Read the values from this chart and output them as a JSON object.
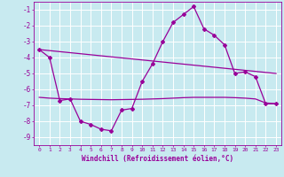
{
  "xlabel": "Windchill (Refroidissement éolien,°C)",
  "background_color": "#c8eaf0",
  "grid_color": "#ffffff",
  "line_color": "#990099",
  "xlim": [
    -0.5,
    23.5
  ],
  "ylim": [
    -9.5,
    -0.5
  ],
  "yticks": [
    -9,
    -8,
    -7,
    -6,
    -5,
    -4,
    -3,
    -2,
    -1
  ],
  "xticks": [
    0,
    1,
    2,
    3,
    4,
    5,
    6,
    7,
    8,
    9,
    10,
    11,
    12,
    13,
    14,
    15,
    16,
    17,
    18,
    19,
    20,
    21,
    22,
    23
  ],
  "series1_x": [
    0,
    1,
    2,
    3,
    4,
    5,
    6,
    7,
    8,
    9,
    10,
    11,
    12,
    13,
    14,
    15,
    16,
    17,
    18,
    19,
    20,
    21,
    22,
    23
  ],
  "series1_y": [
    -3.5,
    -4.0,
    -6.7,
    -6.6,
    -8.0,
    -8.2,
    -8.5,
    -8.6,
    -7.3,
    -7.2,
    -5.5,
    -4.4,
    -3.0,
    -1.8,
    -1.3,
    -0.8,
    -2.2,
    -2.6,
    -3.2,
    -5.0,
    -4.9,
    -5.2,
    -6.9,
    -6.9
  ],
  "series_trend_x": [
    0,
    23
  ],
  "series_trend_y": [
    -3.5,
    -5.0
  ],
  "series_flat_x": [
    0,
    1,
    2,
    3,
    4,
    5,
    6,
    7,
    8,
    9,
    10,
    11,
    12,
    13,
    14,
    15,
    16,
    17,
    18,
    19,
    20,
    21,
    22,
    23
  ],
  "series_flat_y": [
    -6.5,
    -6.55,
    -6.58,
    -6.6,
    -6.62,
    -6.63,
    -6.64,
    -6.65,
    -6.64,
    -6.63,
    -6.62,
    -6.6,
    -6.58,
    -6.55,
    -6.52,
    -6.5,
    -6.5,
    -6.5,
    -6.5,
    -6.52,
    -6.55,
    -6.6,
    -6.85,
    -6.9
  ]
}
